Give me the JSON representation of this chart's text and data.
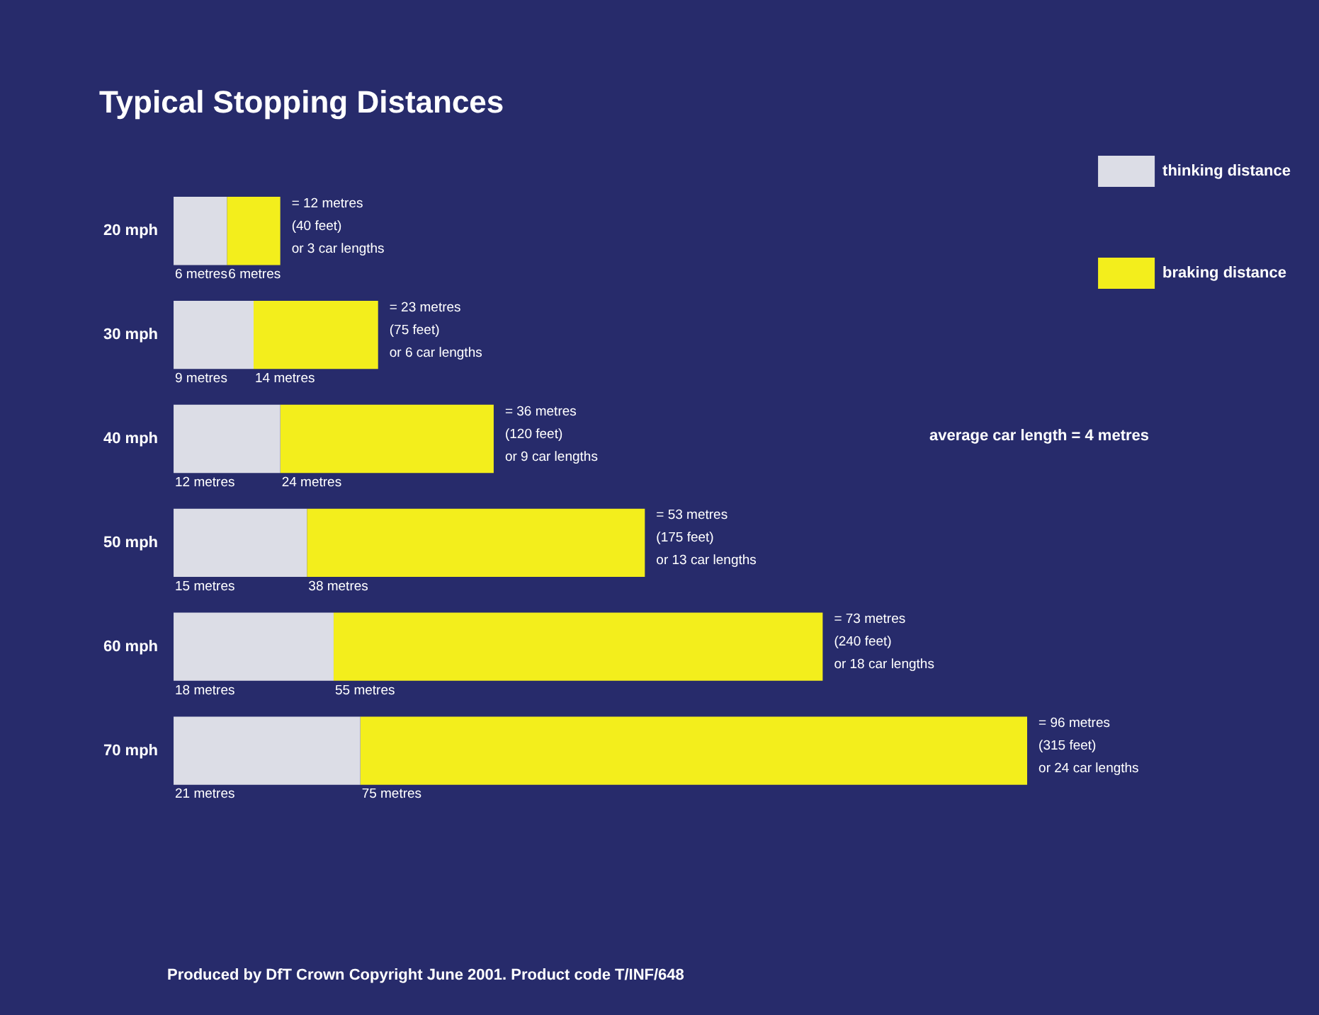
{
  "chart_data": {
    "type": "bar",
    "orientation": "horizontal",
    "stacked": true,
    "title": "Typical Stopping Distances",
    "categories": [
      "20 mph",
      "30 mph",
      "40 mph",
      "50 mph",
      "60 mph",
      "70 mph"
    ],
    "series": [
      {
        "name": "thinking distance",
        "color": "#dcdde6",
        "values": [
          6,
          9,
          12,
          15,
          18,
          21
        ],
        "value_labels": [
          "6 metres",
          "9 metres",
          "12 metres",
          "15 metres",
          "18 metres",
          "21 metres"
        ]
      },
      {
        "name": "braking distance",
        "color": "#f3ee1c",
        "values": [
          6,
          14,
          24,
          38,
          55,
          75
        ],
        "value_labels": [
          "6 metres",
          "14 metres",
          "24 metres",
          "38 metres",
          "55 metres",
          "75 metres"
        ]
      }
    ],
    "totals": [
      "= 12 metres\n(40 feet)\nor 3 car lengths",
      "= 23 metres\n(75 feet)\nor 6 car lengths",
      "= 36 metres\n(120 feet)\nor 9 car lengths",
      "= 53 metres\n(175 feet)\nor 13 car lengths",
      "= 73 metres\n(240 feet)\nor 18 car lengths",
      "= 96 metres\n(315 feet)\nor 24 car lengths"
    ],
    "legend": "top right",
    "annotations": [
      "average car length = 4 metres",
      "Produced by DfT Crown Copyright June 2001. Product code T/INF/648"
    ]
  }
}
